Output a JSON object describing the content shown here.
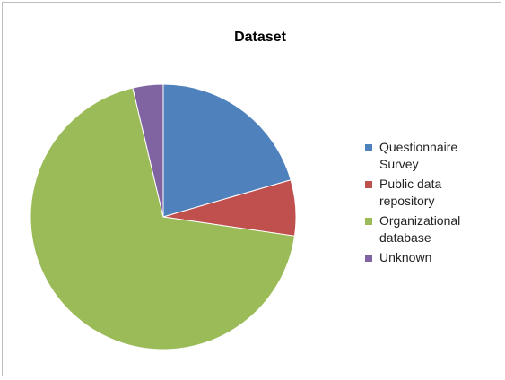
{
  "chart_data": {
    "type": "pie",
    "title": "Dataset",
    "legend_position": "right",
    "categories": [
      "Questionnaire Survey",
      "Public data repository",
      "Organizational database",
      "Unknown"
    ],
    "legend_lines": [
      [
        "Questionnaire",
        "Survey"
      ],
      [
        "Public data",
        "repository"
      ],
      [
        "Organizational",
        "database"
      ],
      [
        "Unknown"
      ]
    ],
    "values": [
      20.5,
      6.8,
      69,
      3.7
    ],
    "colors": [
      "#4f81bd",
      "#c0504d",
      "#9bbb59",
      "#8064a2"
    ],
    "start_angle_deg": 0,
    "direction": "clockwise"
  }
}
